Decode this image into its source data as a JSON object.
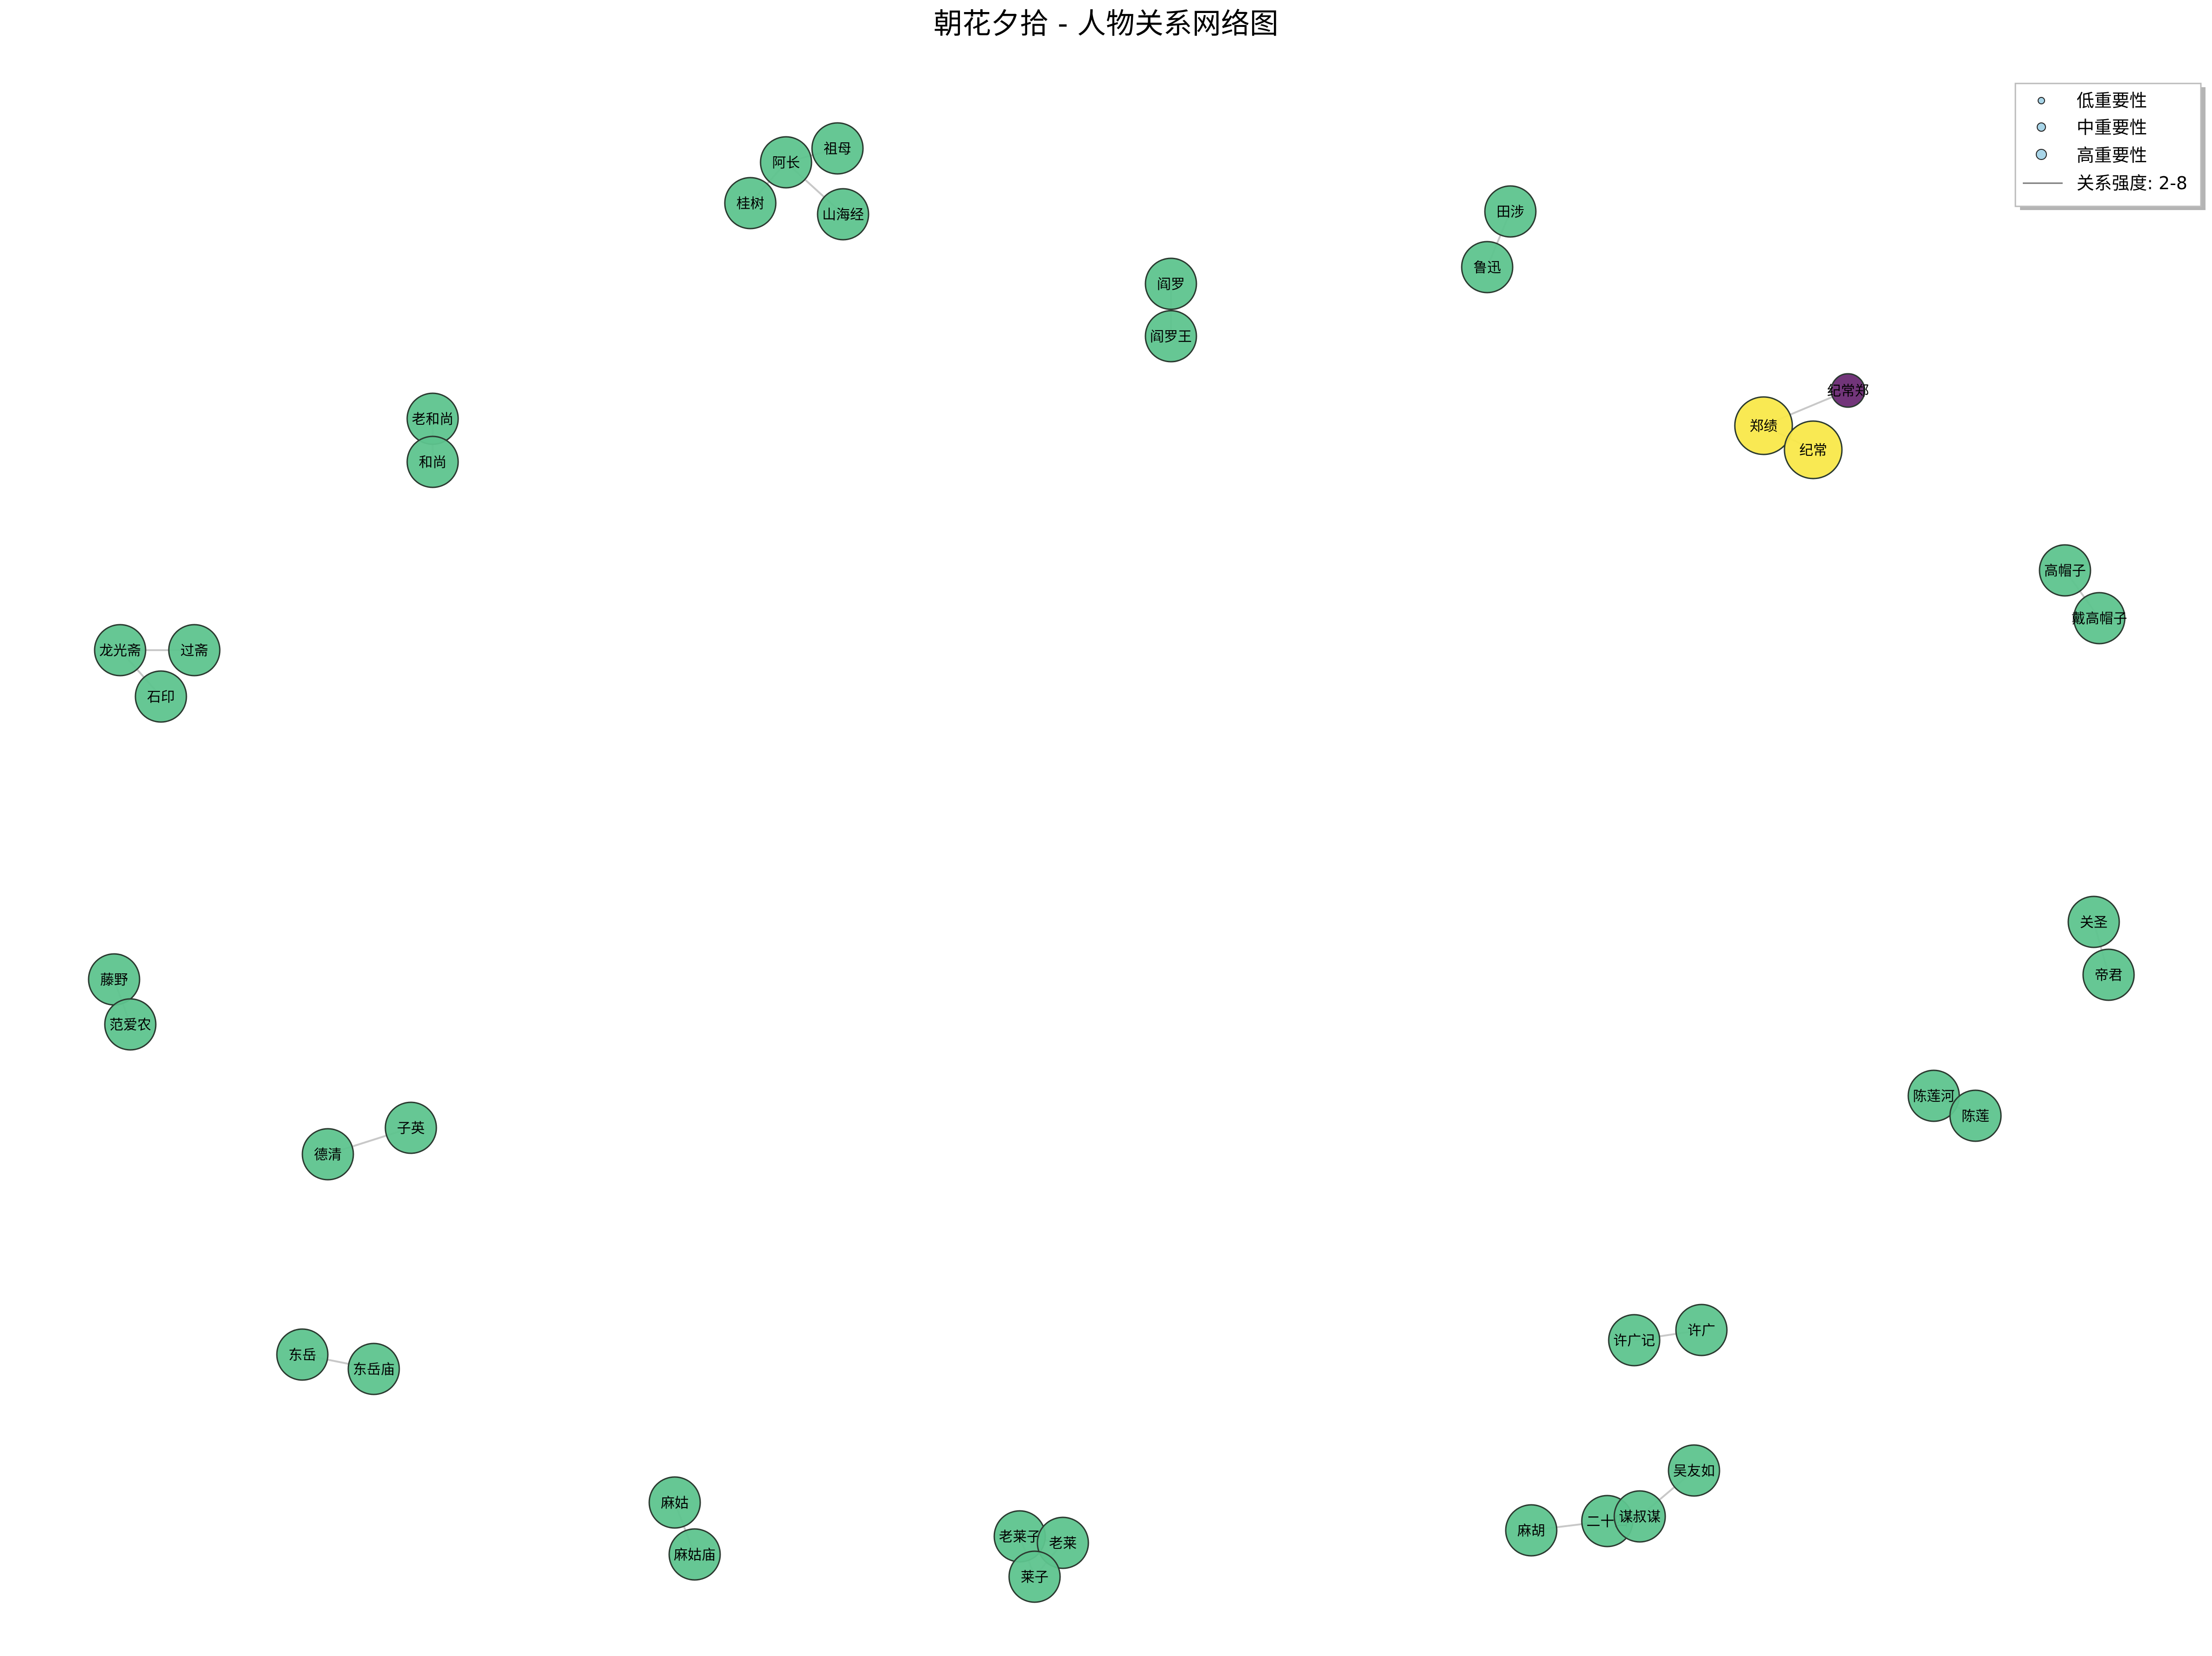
{
  "title": "朝花夕拾 - 人物关系网络图",
  "colors": {
    "node_default": "#5ec48e",
    "node_high": "#f9e84a",
    "node_low": "#6a2a73",
    "node_stroke": "#2b3a30",
    "edge": "#c8c8c8",
    "legend_node": "#a8d5e8"
  },
  "legend": {
    "items": [
      {
        "label": "低重要性",
        "kind": "node"
      },
      {
        "label": "中重要性",
        "kind": "node"
      },
      {
        "label": "高重要性",
        "kind": "node"
      },
      {
        "label": "关系强度: 2-8",
        "kind": "line"
      }
    ]
  },
  "nodes": [
    {
      "id": "zumu",
      "label": "祖母",
      "level": "mid"
    },
    {
      "id": "azhang",
      "label": "阿长",
      "level": "mid"
    },
    {
      "id": "guishu",
      "label": "桂树",
      "level": "mid"
    },
    {
      "id": "shanhaijing",
      "label": "山海经",
      "level": "mid"
    },
    {
      "id": "yanluo",
      "label": "阎罗",
      "level": "mid"
    },
    {
      "id": "yanluowang",
      "label": "阎罗王",
      "level": "mid"
    },
    {
      "id": "tianshe",
      "label": "田涉",
      "level": "mid"
    },
    {
      "id": "luxun",
      "label": "鲁迅",
      "level": "mid"
    },
    {
      "id": "jichangzheng",
      "label": "纪常郑",
      "level": "low"
    },
    {
      "id": "zhengji",
      "label": "郑绩",
      "level": "high"
    },
    {
      "id": "jichang",
      "label": "纪常",
      "level": "high"
    },
    {
      "id": "laoheshang",
      "label": "老和尚",
      "level": "mid"
    },
    {
      "id": "heshang",
      "label": "和尚",
      "level": "mid"
    },
    {
      "id": "gaomaozi",
      "label": "高帽子",
      "level": "mid"
    },
    {
      "id": "daigaomaozi",
      "label": "戴高帽子",
      "level": "mid"
    },
    {
      "id": "longguangzhai",
      "label": "龙光斋",
      "level": "mid"
    },
    {
      "id": "guozhai",
      "label": "过斋",
      "level": "mid"
    },
    {
      "id": "shiyin",
      "label": "石印",
      "level": "mid"
    },
    {
      "id": "guansheng",
      "label": "关圣",
      "level": "mid"
    },
    {
      "id": "dijun",
      "label": "帝君",
      "level": "mid"
    },
    {
      "id": "tengye",
      "label": "藤野",
      "level": "mid"
    },
    {
      "id": "fanainong",
      "label": "范爱农",
      "level": "mid"
    },
    {
      "id": "chenlianhe",
      "label": "陈莲河",
      "level": "mid"
    },
    {
      "id": "chenlian",
      "label": "陈莲",
      "level": "mid"
    },
    {
      "id": "deqing",
      "label": "德清",
      "level": "mid"
    },
    {
      "id": "ziying",
      "label": "子英",
      "level": "mid"
    },
    {
      "id": "xuguangji",
      "label": "许广记",
      "level": "mid"
    },
    {
      "id": "xuguang",
      "label": "许广",
      "level": "mid"
    },
    {
      "id": "dongyue",
      "label": "东岳",
      "level": "mid"
    },
    {
      "id": "dongyuemiao",
      "label": "东岳庙",
      "level": "mid"
    },
    {
      "id": "wuyouru",
      "label": "吴友如",
      "level": "mid"
    },
    {
      "id": "magu",
      "label": "麻姑",
      "level": "mid"
    },
    {
      "id": "magumiao",
      "label": "麻姑庙",
      "level": "mid"
    },
    {
      "id": "mahu",
      "label": "麻胡",
      "level": "mid"
    },
    {
      "id": "ershisi",
      "label": "二十四",
      "level": "mid"
    },
    {
      "id": "moshumou",
      "label": "谋叔谋",
      "level": "mid"
    },
    {
      "id": "laolaizi",
      "label": "老莱子",
      "level": "mid"
    },
    {
      "id": "laolai",
      "label": "老莱",
      "level": "mid"
    },
    {
      "id": "laizi",
      "label": "莱子",
      "level": "mid"
    }
  ],
  "edges": [
    [
      "zumu",
      "azhang"
    ],
    [
      "azhang",
      "guishu"
    ],
    [
      "azhang",
      "shanhaijing"
    ],
    [
      "yanluo",
      "yanluowang"
    ],
    [
      "tianshe",
      "luxun"
    ],
    [
      "jichangzheng",
      "zhengji"
    ],
    [
      "zhengji",
      "jichang"
    ],
    [
      "laoheshang",
      "heshang"
    ],
    [
      "gaomaozi",
      "daigaomaozi"
    ],
    [
      "longguangzhai",
      "guozhai"
    ],
    [
      "longguangzhai",
      "shiyin"
    ],
    [
      "guansheng",
      "dijun"
    ],
    [
      "tengye",
      "fanainong"
    ],
    [
      "chenlianhe",
      "chenlian"
    ],
    [
      "deqing",
      "ziying"
    ],
    [
      "xuguangji",
      "xuguang"
    ],
    [
      "dongyue",
      "dongyuemiao"
    ],
    [
      "magu",
      "magumiao"
    ],
    [
      "mahu",
      "ershisi"
    ],
    [
      "ershisi",
      "moshumou"
    ],
    [
      "moshumou",
      "wuyouru"
    ],
    [
      "laolaizi",
      "laolai"
    ],
    [
      "laolai",
      "laizi"
    ],
    [
      "laolaizi",
      "laizi"
    ]
  ]
}
